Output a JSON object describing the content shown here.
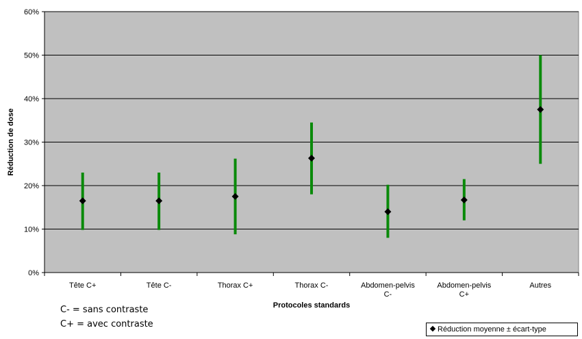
{
  "chart_data": {
    "type": "scatter",
    "title": "",
    "xlabel": "Protocoles standards",
    "ylabel": "Réduction de dose",
    "ylim": [
      0,
      60
    ],
    "yticks": [
      "0%",
      "10%",
      "20%",
      "30%",
      "40%",
      "50%",
      "60%"
    ],
    "grid": true,
    "categories": [
      [
        "Tête C+"
      ],
      [
        "Tête C-"
      ],
      [
        "Thorax C+"
      ],
      [
        "Thorax C-"
      ],
      [
        "Abdomen-pelvis",
        "C-"
      ],
      [
        "Abdomen-pelvis",
        "C+"
      ],
      [
        "Autres"
      ]
    ],
    "series": [
      {
        "name": "Réduction moyenne ± écart-type",
        "values": [
          16.5,
          16.5,
          17.5,
          26.3,
          14,
          16.7,
          37.5
        ],
        "low": [
          9.8,
          9.8,
          8.8,
          18,
          8,
          12,
          25
        ],
        "high": [
          23,
          23,
          26.2,
          34.5,
          20.2,
          21.5,
          50
        ]
      }
    ],
    "legend_position": "bottom-right",
    "colors": {
      "plot_bg": "#c0c0c0",
      "error_bar": "#0a8a0a",
      "marker": "#000000"
    }
  },
  "notes": [
    "C- = sans contraste",
    "C+ = avec contraste"
  ]
}
